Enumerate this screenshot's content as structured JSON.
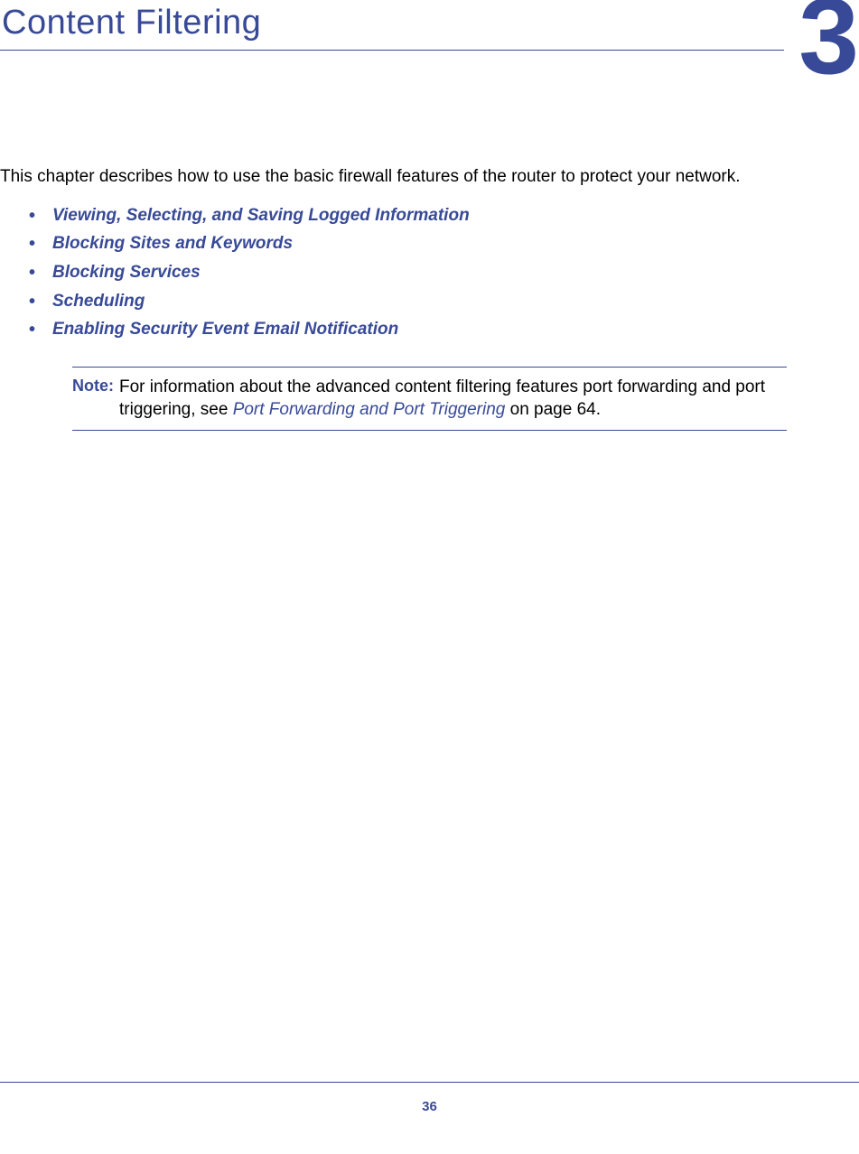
{
  "header": {
    "chapter_title": "Content Filtering",
    "chapter_number": "3",
    "title_color": "#384a97",
    "title_fontsize": 38,
    "number_fontsize": 120
  },
  "intro": {
    "text": "This chapter describes how to use the basic firewall features of the router to protect your network.",
    "fontsize": 19,
    "text_color": "#000000"
  },
  "links": {
    "items": [
      {
        "label": "Viewing, Selecting, and Saving Logged Information"
      },
      {
        "label": "Blocking Sites and Keywords"
      },
      {
        "label": "Blocking Services"
      },
      {
        "label": "Scheduling"
      },
      {
        "label": "Enabling Security Event Email Notification"
      }
    ],
    "link_color": "#384a97",
    "bullet_color": "#384a97",
    "fontsize": 19
  },
  "note": {
    "label": "Note:",
    "text_before": "For information about the advanced content filtering features port forwarding and port triggering, see ",
    "link_text": "Port Forwarding and Port Triggering",
    "text_after": " on page 64.",
    "label_color": "#384a97",
    "border_color": "#384a97",
    "fontsize": 19
  },
  "footer": {
    "page_number": "36",
    "color": "#384a97",
    "fontsize": 15
  },
  "colors": {
    "brand_blue": "#384a97",
    "background": "#ffffff",
    "body_text": "#000000"
  }
}
